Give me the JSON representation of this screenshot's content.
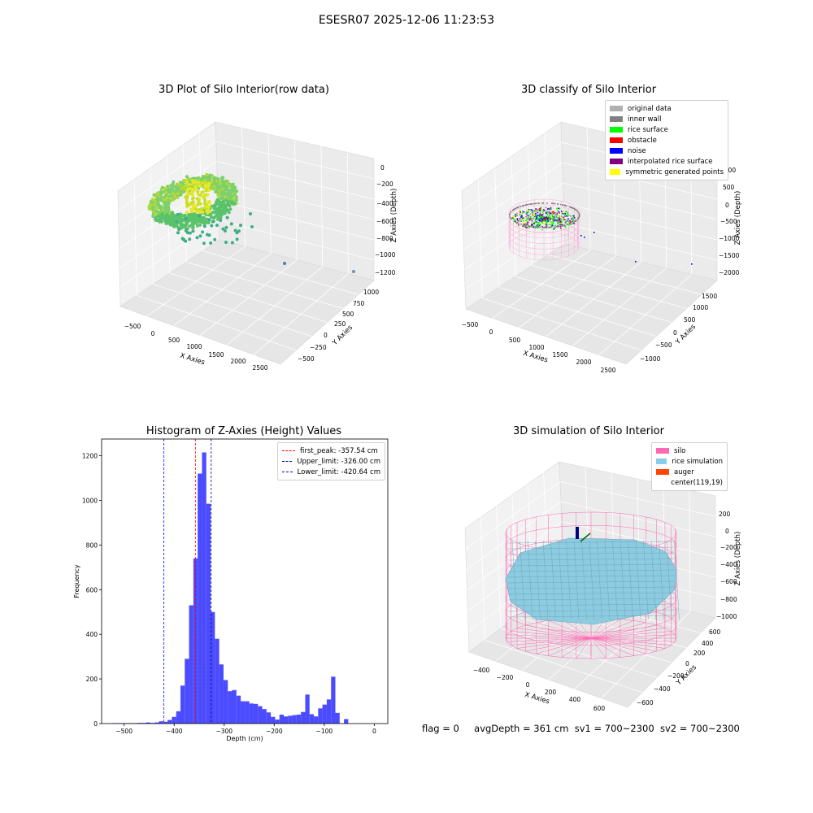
{
  "figure": {
    "title": "ESESR07 2025-12-06 11:23:53",
    "status": {
      "flag": "flag = 0",
      "avg_depth": "avgDepth = 361 cm",
      "sv1": "sv1 = 700~2300",
      "sv2": "sv2 = 700~2300"
    }
  },
  "raw_plot": {
    "title": "3D Plot of Silo Interior(row data)",
    "xlabel": "X Axies",
    "ylabel": "Y Axies",
    "zlabel": "Z Axies (Depth)",
    "x_ticks": [
      "−500",
      "0",
      "500",
      "1000",
      "1500",
      "2000",
      "2500"
    ],
    "y_ticks": [
      "−500",
      "−250",
      "0",
      "250",
      "500",
      "750",
      "1000"
    ],
    "z_ticks": [
      "0",
      "−200",
      "−400",
      "−600",
      "−800",
      "−1000",
      "−1200"
    ]
  },
  "classify_plot": {
    "title": "3D classify of Silo Interior",
    "xlabel": "X Axies",
    "ylabel": "Y Axies",
    "zlabel": "Z Axies (Depth)",
    "x_ticks": [
      "−500",
      "0",
      "500",
      "1000",
      "1500",
      "2000",
      "2500"
    ],
    "y_ticks": [
      "−1000",
      "−500",
      "0",
      "500",
      "1000",
      "1500"
    ],
    "z_ticks": [
      "1000",
      "500",
      "0",
      "−500",
      "−1000",
      "−1500",
      "−2000"
    ],
    "legend": [
      {
        "label": "original data",
        "color": "#b0b0b0"
      },
      {
        "label": "inner wall",
        "color": "#808080"
      },
      {
        "label": "rice surface",
        "color": "#00ff00"
      },
      {
        "label": "obstacle",
        "color": "#ff0000"
      },
      {
        "label": "noise",
        "color": "#0000ff"
      },
      {
        "label": "interpolated rice surface",
        "color": "#800080"
      },
      {
        "label": "symmetric generated points",
        "color": "#ffff00"
      }
    ]
  },
  "histogram": {
    "title": "Histogram of Z-Axies (Height) Values",
    "xlabel": "Depth (cm)",
    "ylabel": "Frequency",
    "x_ticks": [
      "−500",
      "−400",
      "−300",
      "−200",
      "−100",
      "0"
    ],
    "y_ticks": [
      "0",
      "200",
      "400",
      "600",
      "800",
      "1000",
      "1200"
    ],
    "legend": [
      {
        "label": "first_peak: -357.54 cm",
        "color": "#ff0000"
      },
      {
        "label": "Upper_limit: -326.00 cm",
        "color": "#00008b"
      },
      {
        "label": "Lower_limit: -420.64 cm",
        "color": "#0000ff"
      }
    ]
  },
  "simulation_plot": {
    "title": "3D simulation of Silo Interior",
    "xlabel": "X Axies",
    "ylabel": "Y Axies",
    "zlabel": "Z Axies (Depth)",
    "x_ticks": [
      "−400",
      "−200",
      "0",
      "200",
      "400",
      "600"
    ],
    "y_ticks": [
      "−600",
      "−400",
      "−200",
      "0",
      "200",
      "400",
      "600"
    ],
    "z_ticks": [
      "200",
      "0",
      "−200",
      "−400",
      "−600",
      "−800",
      "−1000"
    ],
    "legend": [
      {
        "label": "silo",
        "color": "#ff69b4"
      },
      {
        "label": "rice simulation",
        "color": "#87ceeb"
      },
      {
        "label": "auger",
        "color": "#ff4500"
      },
      {
        "label": "center(119,19)",
        "color": ""
      }
    ]
  },
  "chart_data": [
    {
      "type": "scatter",
      "title": "3D Plot of Silo Interior(row data)",
      "xlabel": "X Axies",
      "ylabel": "Y Axies",
      "zlabel": "Z Axies (Depth)",
      "xlim": [
        -600,
        2600
      ],
      "ylim": [
        -600,
        1100
      ],
      "zlim": [
        -1250,
        50
      ],
      "grid": true
    },
    {
      "type": "scatter",
      "title": "3D classify of Silo Interior",
      "xlabel": "X Axies",
      "ylabel": "Y Axies",
      "zlabel": "Z Axies (Depth)",
      "xlim": [
        -600,
        2600
      ],
      "ylim": [
        -1200,
        1700
      ],
      "zlim": [
        -2050,
        1050
      ],
      "grid": true,
      "legend_position": "top-right",
      "series": [
        {
          "name": "original data"
        },
        {
          "name": "inner wall"
        },
        {
          "name": "rice surface"
        },
        {
          "name": "obstacle"
        },
        {
          "name": "noise"
        },
        {
          "name": "interpolated rice surface"
        },
        {
          "name": "symmetric generated points"
        }
      ]
    },
    {
      "type": "bar",
      "title": "Histogram of Z-Axies (Height) Values",
      "xlabel": "Depth (cm)",
      "ylabel": "Frequency",
      "xlim": [
        -545,
        27
      ],
      "ylim": [
        0,
        1275
      ],
      "grid": false,
      "legend_position": "top-right",
      "bin_start": -525,
      "bin_width": 8.6,
      "values": [
        2,
        2,
        2,
        2,
        2,
        2,
        3,
        3,
        5,
        3,
        5,
        10,
        8,
        16,
        30,
        55,
        170,
        290,
        530,
        740,
        1120,
        1215,
        985,
        500,
        380,
        265,
        195,
        145,
        150,
        125,
        100,
        100,
        90,
        88,
        78,
        65,
        50,
        30,
        18,
        40,
        32,
        35,
        38,
        40,
        52,
        130,
        42,
        32,
        68,
        85,
        108,
        210,
        48,
        0,
        20
      ],
      "vlines": [
        {
          "name": "first_peak: -357.54 cm",
          "x": -357.54
        },
        {
          "name": "Upper_limit: -326.00 cm",
          "x": -326.0
        },
        {
          "name": "Lower_limit: -420.64 cm",
          "x": -420.64
        }
      ]
    },
    {
      "type": "scatter",
      "title": "3D simulation of Silo Interior",
      "xlabel": "X Axies",
      "ylabel": "Y Axies",
      "zlabel": "Z Axies (Depth)",
      "xlim": [
        -500,
        700
      ],
      "ylim": [
        -700,
        700
      ],
      "zlim": [
        -1000,
        300
      ],
      "grid": true,
      "legend_position": "top-right",
      "series": [
        {
          "name": "silo"
        },
        {
          "name": "rice simulation"
        },
        {
          "name": "auger"
        },
        {
          "name": "center(119,19)"
        }
      ]
    }
  ]
}
